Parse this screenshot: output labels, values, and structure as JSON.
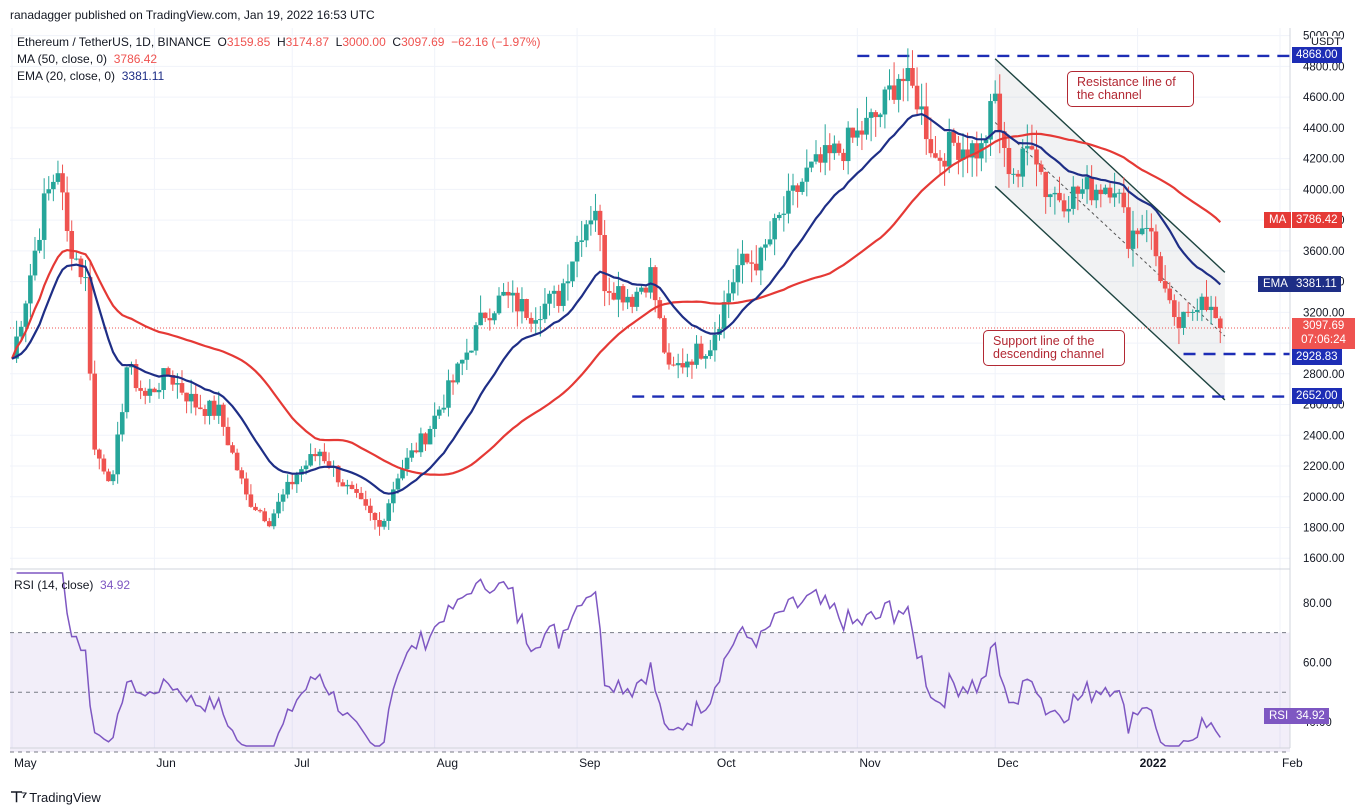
{
  "publisher": "ranadagger published on TradingView.com, Jan 19, 2022 16:53 UTC",
  "header": {
    "symbol": "Ethereum / TetherUS, 1D, BINANCE",
    "o_label": "O",
    "o": "3159.85",
    "h_label": "H",
    "h": "3174.87",
    "l_label": "L",
    "l": "3000.00",
    "c_label": "C",
    "c": "3097.69",
    "change": "−62.16 (−1.97%)",
    "ma_label": "MA (50, close, 0)",
    "ma_value": "3786.42",
    "ema_label": "EMA (20, close, 0)",
    "ema_value": "3381.11"
  },
  "currency": "USDT",
  "footer_logo": "TradingView",
  "annotations": {
    "resistance": "Resistance line of the channel",
    "support": "Support line of the descending channel"
  },
  "price_tags": {
    "top": "4868.00",
    "ma_name": "MA",
    "ma": "3786.42",
    "ema_name": "EMA",
    "ema": "3381.11",
    "last": "3097.69",
    "countdown": "07:06:24",
    "support1": "2928.83",
    "support2": "2652.00"
  },
  "rsi_panel": {
    "label": "RSI (14, close)",
    "value": "34.92",
    "tag_name": "RSI",
    "tag": "34.92"
  },
  "colors": {
    "up": "#26a69a",
    "down": "#ef5350",
    "ema": "#1e2e86",
    "ma": "#e53935",
    "dash": "#1d2db5",
    "rsi": "#7e57c2",
    "channel": "#1d4440"
  },
  "chart_data": [
    {
      "type": "candlestick",
      "title": "Ethereum / TetherUS, 1D, BINANCE",
      "x_ticks": [
        "May",
        "Jun",
        "Jul",
        "Aug",
        "Sep",
        "Oct",
        "Nov",
        "Dec",
        "2022",
        "Feb"
      ],
      "y_ticks": [
        1600,
        1800,
        2000,
        2200,
        2400,
        2600,
        2800,
        3000,
        3200,
        3400,
        3600,
        3800,
        4000,
        4200,
        4400,
        4600,
        4800,
        5000
      ],
      "y_tick_labels": [
        "1600.00",
        "1800.00",
        "2000.00",
        "2200.00",
        "2400.00",
        "2600.00",
        "2800.00",
        "3000.00",
        "3200.00",
        "3400.00",
        "3600.00",
        "3800.00",
        "4000.00",
        "4200.00",
        "4400.00",
        "4600.00",
        "4800.00",
        "5000.00"
      ],
      "ylim": [
        1530,
        5050
      ],
      "anchor_closes": [
        [
          "2021-05-01",
          2900
        ],
        [
          "2021-05-04",
          3300
        ],
        [
          "2021-05-08",
          3900
        ],
        [
          "2021-05-11",
          4150
        ],
        [
          "2021-05-13",
          3700
        ],
        [
          "2021-05-17",
          3400
        ],
        [
          "2021-05-19",
          2300
        ],
        [
          "2021-05-23",
          2100
        ],
        [
          "2021-05-26",
          2850
        ],
        [
          "2021-05-30",
          2650
        ],
        [
          "2021-06-04",
          2800
        ],
        [
          "2021-06-10",
          2600
        ],
        [
          "2021-06-15",
          2550
        ],
        [
          "2021-06-21",
          2000
        ],
        [
          "2021-06-26",
          1850
        ],
        [
          "2021-07-02",
          2150
        ],
        [
          "2021-07-07",
          2300
        ],
        [
          "2021-07-13",
          2050
        ],
        [
          "2021-07-20",
          1800
        ],
        [
          "2021-07-24",
          2150
        ],
        [
          "2021-07-30",
          2400
        ],
        [
          "2021-08-05",
          2750
        ],
        [
          "2021-08-12",
          3200
        ],
        [
          "2021-08-16",
          3300
        ],
        [
          "2021-08-22",
          3200
        ],
        [
          "2021-08-28",
          3300
        ],
        [
          "2021-09-02",
          3750
        ],
        [
          "2021-09-05",
          3900
        ],
        [
          "2021-09-07",
          3400
        ],
        [
          "2021-09-13",
          3300
        ],
        [
          "2021-09-17",
          3450
        ],
        [
          "2021-09-21",
          2800
        ],
        [
          "2021-09-25",
          2900
        ],
        [
          "2021-09-30",
          3000
        ],
        [
          "2021-10-06",
          3500
        ],
        [
          "2021-10-11",
          3550
        ],
        [
          "2021-10-15",
          3800
        ],
        [
          "2021-10-21",
          4100
        ],
        [
          "2021-10-28",
          4250
        ],
        [
          "2021-11-01",
          4350
        ],
        [
          "2021-11-06",
          4500
        ],
        [
          "2021-11-10",
          4750
        ],
        [
          "2021-11-14",
          4600
        ],
        [
          "2021-11-18",
          4200
        ],
        [
          "2021-11-22",
          4300
        ],
        [
          "2021-11-28",
          4250
        ],
        [
          "2021-12-01",
          4600
        ],
        [
          "2021-12-03",
          4200
        ],
        [
          "2021-12-06",
          4100
        ],
        [
          "2021-12-09",
          4350
        ],
        [
          "2021-12-12",
          4000
        ],
        [
          "2021-12-16",
          3950
        ],
        [
          "2021-12-21",
          4000
        ],
        [
          "2021-12-27",
          4050
        ],
        [
          "2021-12-30",
          3700
        ],
        [
          "2022-01-03",
          3800
        ],
        [
          "2022-01-06",
          3450
        ],
        [
          "2022-01-09",
          3100
        ],
        [
          "2022-01-12",
          3150
        ],
        [
          "2022-01-15",
          3350
        ],
        [
          "2022-01-17",
          3200
        ],
        [
          "2022-01-19",
          3097.69
        ]
      ],
      "last": {
        "open": 3159.85,
        "high": 3174.87,
        "low": 3000.0,
        "close": 3097.69
      },
      "indicators": [
        {
          "name": "MA (50, close, 0)",
          "last": 3786.42
        },
        {
          "name": "EMA (20, close, 0)",
          "last": 3381.11
        }
      ],
      "horizontal_levels": [
        4868.0,
        2928.83,
        2652.0
      ],
      "descending_channel": {
        "upper": [
          [
            "2021-12-01",
            4850
          ],
          [
            "2022-01-20",
            3460
          ]
        ],
        "lower": [
          [
            "2021-12-01",
            4020
          ],
          [
            "2022-01-20",
            2630
          ]
        ]
      }
    },
    {
      "type": "line",
      "title": "RSI (14, close)",
      "y_ticks": [
        40,
        60,
        80
      ],
      "y_tick_labels": [
        "40.00",
        "60.00",
        "80.00"
      ],
      "ylim": [
        32,
        90
      ],
      "bands": [
        30,
        50,
        70
      ],
      "last": 34.92
    }
  ]
}
